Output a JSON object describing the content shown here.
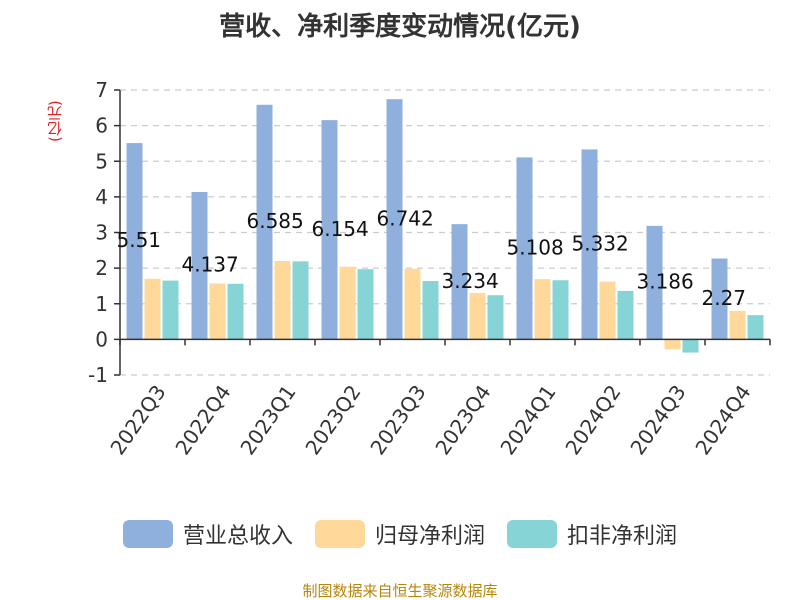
{
  "chart_data": {
    "type": "bar",
    "title": "营收、净利季度变动情况(亿元)",
    "ylabel": "(亿元)",
    "categories": [
      "2022Q3",
      "2022Q4",
      "2023Q1",
      "2023Q2",
      "2023Q3",
      "2023Q4",
      "2024Q1",
      "2024Q2",
      "2024Q3",
      "2024Q4"
    ],
    "series": [
      {
        "name": "营业总收入",
        "color": "#8fb0dc",
        "values": [
          5.51,
          4.137,
          6.585,
          6.154,
          6.742,
          3.234,
          5.108,
          5.332,
          3.186,
          2.27
        ]
      },
      {
        "name": "归母净利润",
        "color": "#ffd89a",
        "values": [
          1.7,
          1.57,
          2.2,
          2.04,
          1.98,
          1.3,
          1.69,
          1.62,
          -0.28,
          0.8
        ]
      },
      {
        "name": "扣非净利润",
        "color": "#86d4d6",
        "values": [
          1.65,
          1.56,
          2.19,
          1.97,
          1.64,
          1.24,
          1.66,
          1.36,
          -0.37,
          0.68
        ]
      }
    ],
    "data_labels": [
      "5.51",
      "4.137",
      "6.585",
      "6.154",
      "6.742",
      "3.234",
      "5.108",
      "5.332",
      "3.186",
      "2.27"
    ],
    "ylim": [
      -1,
      7
    ],
    "yticks": [
      -1,
      0,
      1,
      2,
      3,
      4,
      5,
      6,
      7
    ],
    "grid": true,
    "legend_position": "bottom"
  },
  "source": "制图数据来自恒生聚源数据库"
}
